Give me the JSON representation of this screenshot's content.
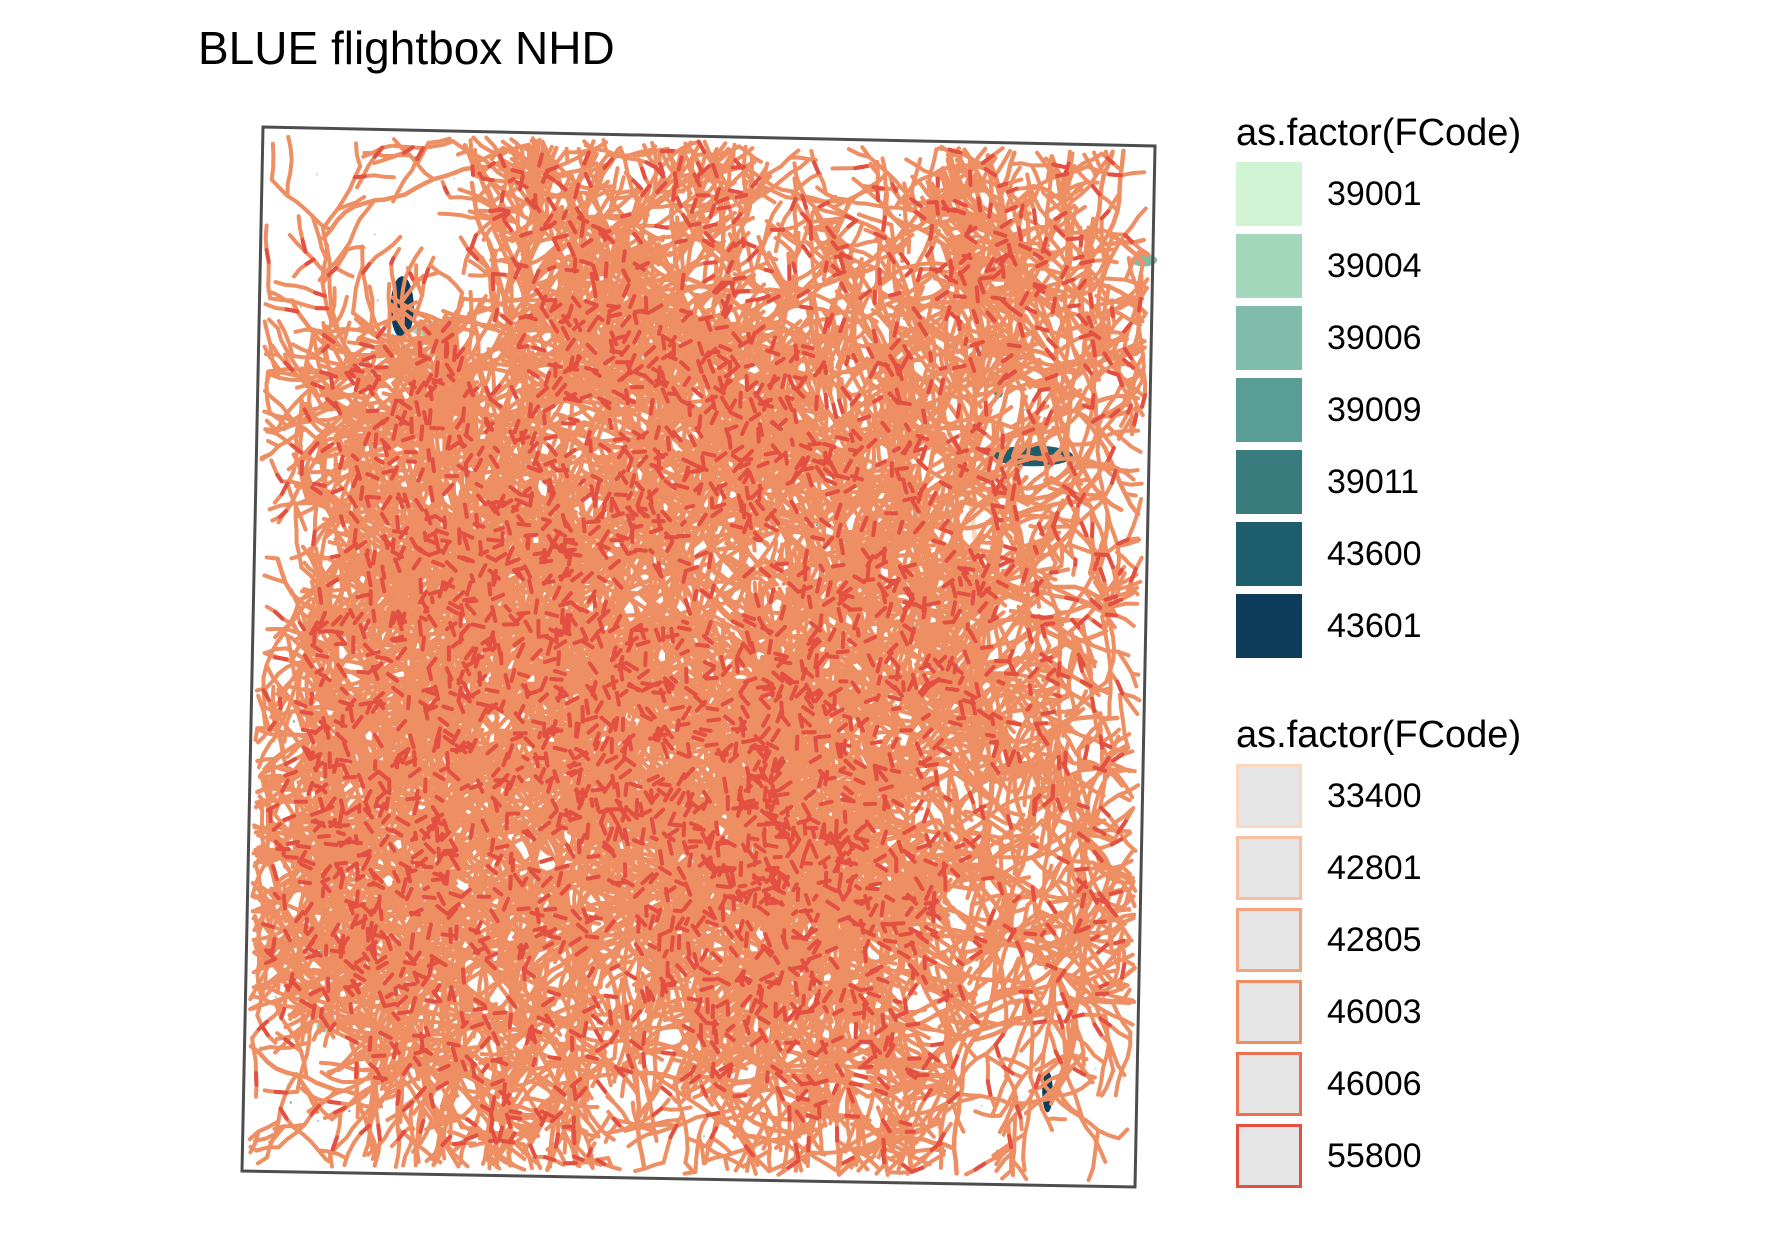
{
  "title": "BLUE flightbox NHD",
  "legends": [
    {
      "title": "as.factor(FCode)",
      "kind": "fill",
      "items": [
        {
          "label": "39001",
          "color": "#d1f5d4"
        },
        {
          "label": "39004",
          "color": "#a3d8bc"
        },
        {
          "label": "39006",
          "color": "#7fbdaa"
        },
        {
          "label": "39009",
          "color": "#5a9d94"
        },
        {
          "label": "39011",
          "color": "#3a7b7d"
        },
        {
          "label": "43600",
          "color": "#1e5d6c"
        },
        {
          "label": "43601",
          "color": "#0e3d5c"
        }
      ]
    },
    {
      "title": "as.factor(FCode)",
      "kind": "line",
      "fill": "#e5e5e5",
      "items": [
        {
          "label": "33400",
          "color": "#f9d7c1"
        },
        {
          "label": "42801",
          "color": "#f7c1a1"
        },
        {
          "label": "42805",
          "color": "#f3a47f"
        },
        {
          "label": "46003",
          "color": "#ee8e63"
        },
        {
          "label": "46006",
          "color": "#ea7253"
        },
        {
          "label": "55800",
          "color": "#e34f41"
        }
      ]
    }
  ],
  "map": {
    "boundary_color": "#4d4d4d",
    "flowline_color": "#ee8e63",
    "highlight_color": "#e34f41",
    "canal_color": "#f9d7c1",
    "water_colors": [
      "#a3d8bc",
      "#7fbdaa",
      "#3a7b7d",
      "#1e5d6c",
      "#0e3d5c"
    ]
  }
}
